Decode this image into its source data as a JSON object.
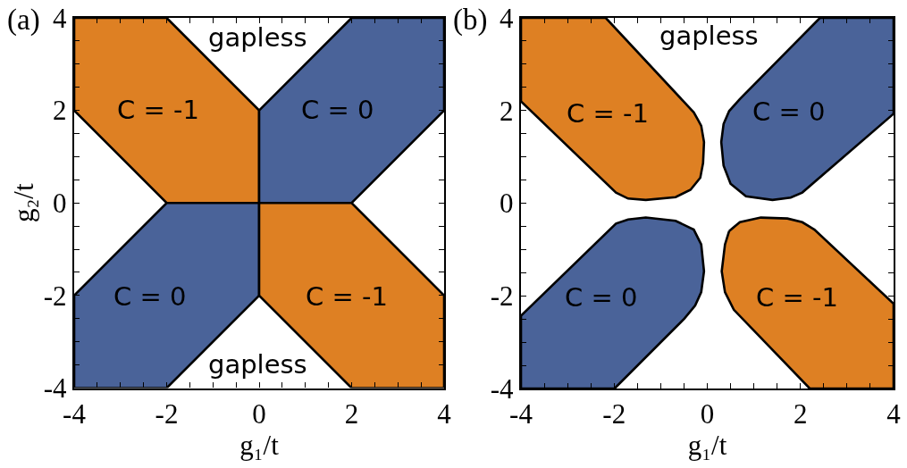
{
  "chart_data": [
    {
      "type": "area",
      "xlabel": "g₁/t",
      "ylabel": "g₂/t",
      "xlim": [
        -4,
        4
      ],
      "ylim": [
        -4,
        4
      ],
      "xticks": [
        -4,
        {
          "value": -3.5,
          "label": null
        },
        {
          "value": -3,
          "label": null
        },
        {
          "value": -2.5,
          "label": null
        },
        -2,
        {
          "value": -1.5,
          "label": null
        },
        {
          "value": -1,
          "label": null
        },
        {
          "value": -0.5,
          "label": null
        },
        0,
        {
          "value": 0.5,
          "label": null
        },
        {
          "value": 1,
          "label": null
        },
        {
          "value": 1.5,
          "label": null
        },
        2,
        {
          "value": 2.5,
          "label": null
        },
        {
          "value": 3,
          "label": null
        },
        {
          "value": 3.5,
          "label": null
        },
        4
      ],
      "yticks": [
        -4,
        {
          "value": -3.5,
          "label": null
        },
        {
          "value": -3,
          "label": null
        },
        {
          "value": -2.5,
          "label": null
        },
        -2,
        {
          "value": -1.5,
          "label": null
        },
        {
          "value": -1,
          "label": null
        },
        {
          "value": -0.5,
          "label": null
        },
        0,
        {
          "value": 0.5,
          "label": null
        },
        {
          "value": 1,
          "label": null
        },
        {
          "value": 1.5,
          "label": null
        },
        2,
        {
          "value": 2.5,
          "label": null
        },
        {
          "value": 3,
          "label": null
        },
        {
          "value": 3.5,
          "label": null
        },
        4
      ],
      "grid": false,
      "series": [
        {
          "color": "#de8023",
          "x": [
            -4,
            -2,
            0,
            0,
            -2,
            -4
          ],
          "values": [
            4,
            4,
            2,
            0,
            0,
            2
          ]
        },
        {
          "color": "#4a6399",
          "x": [
            0,
            2,
            4,
            4,
            2,
            0
          ],
          "values": [
            2,
            4,
            4,
            2,
            0,
            0
          ]
        },
        {
          "color": "#4a6399",
          "x": [
            -4,
            -2,
            0,
            0,
            -2,
            -4
          ],
          "values": [
            -4,
            -4,
            -2,
            0,
            0,
            -2
          ]
        },
        {
          "color": "#de8023",
          "x": [
            0,
            2,
            4,
            4,
            2,
            0
          ],
          "values": [
            0,
            0,
            -2,
            -4,
            -4,
            -2
          ]
        }
      ],
      "annotations": [
        "(a)",
        "gapless",
        "C = -1",
        "C = 0",
        "C = 0",
        "C = -1",
        "gapless"
      ]
    },
    {
      "type": "area",
      "xlabel": "g₁/t",
      "xlim": [
        -4,
        4
      ],
      "ylim": [
        -4,
        4
      ],
      "xticks": [
        -4,
        {
          "value": -3.5,
          "label": null
        },
        {
          "value": -3,
          "label": null
        },
        {
          "value": -2.5,
          "label": null
        },
        -2,
        {
          "value": -1.5,
          "label": null
        },
        {
          "value": -1,
          "label": null
        },
        {
          "value": -0.5,
          "label": null
        },
        0,
        {
          "value": 0.5,
          "label": null
        },
        {
          "value": 1,
          "label": null
        },
        {
          "value": 1.5,
          "label": null
        },
        2,
        {
          "value": 2.5,
          "label": null
        },
        {
          "value": 3,
          "label": null
        },
        {
          "value": 3.5,
          "label": null
        },
        4
      ],
      "yticks": [
        -4,
        {
          "value": -3.5,
          "label": null
        },
        {
          "value": -3,
          "label": null
        },
        {
          "value": -2.5,
          "label": null
        },
        -2,
        {
          "value": -1.5,
          "label": null
        },
        {
          "value": -1,
          "label": null
        },
        {
          "value": -0.5,
          "label": null
        },
        0,
        {
          "value": 0.5,
          "label": null
        },
        {
          "value": 1,
          "label": null
        },
        {
          "value": 1.5,
          "label": null
        },
        2,
        {
          "value": 2.5,
          "label": null
        },
        {
          "value": 3,
          "label": null
        },
        {
          "value": 3.5,
          "label": null
        },
        4
      ],
      "grid": false,
      "series": [
        {
          "color": "#de8023",
          "x": [
            -4,
            -2.18,
            -0.29,
            -0.2,
            -0.13,
            -0.07,
            -0.09,
            -0.15,
            -0.36,
            -0.68,
            -1.32,
            -1.7,
            -1.96,
            -4
          ],
          "values": [
            4,
            4,
            1.96,
            1.8,
            1.67,
            1.32,
            0.87,
            0.55,
            0.29,
            0.13,
            0.07,
            0.1,
            0.23,
            2.2
          ]
        },
        {
          "color": "#4a6399",
          "x": [
            2.42,
            4,
            4,
            2.04,
            1.79,
            1.4,
            0.83,
            0.5,
            0.35,
            0.3,
            0.35,
            0.47,
            0.7
          ],
          "values": [
            4,
            4,
            1.93,
            0.23,
            0.12,
            0.07,
            0.15,
            0.42,
            0.81,
            1.32,
            1.71,
            1.99,
            2.25
          ]
        },
        {
          "color": "#4a6399",
          "x": [
            -4,
            -1.96,
            -1.7,
            -1.32,
            -0.68,
            -0.29,
            -0.13,
            -0.07,
            -0.13,
            -0.26,
            -0.49,
            -1.99,
            -4
          ],
          "values": [
            -2.43,
            -0.44,
            -0.35,
            -0.31,
            -0.38,
            -0.57,
            -0.89,
            -1.47,
            -1.92,
            -2.21,
            -2.49,
            -4,
            -4
          ]
        },
        {
          "color": "#de8023",
          "x": [
            0.47,
            0.7,
            1.15,
            1.72,
            2.04,
            2.3,
            4,
            4,
            2.2,
            0.57,
            0.38,
            0.31,
            0.38
          ],
          "values": [
            -0.6,
            -0.41,
            -0.31,
            -0.33,
            -0.41,
            -0.57,
            -2.17,
            -4,
            -4,
            -2.3,
            -1.92,
            -1.47,
            -0.89
          ]
        }
      ],
      "annotations": [
        "(b)",
        "gapless",
        "C = -1",
        "C = 0",
        "C = 0",
        "C = -1"
      ]
    }
  ]
}
